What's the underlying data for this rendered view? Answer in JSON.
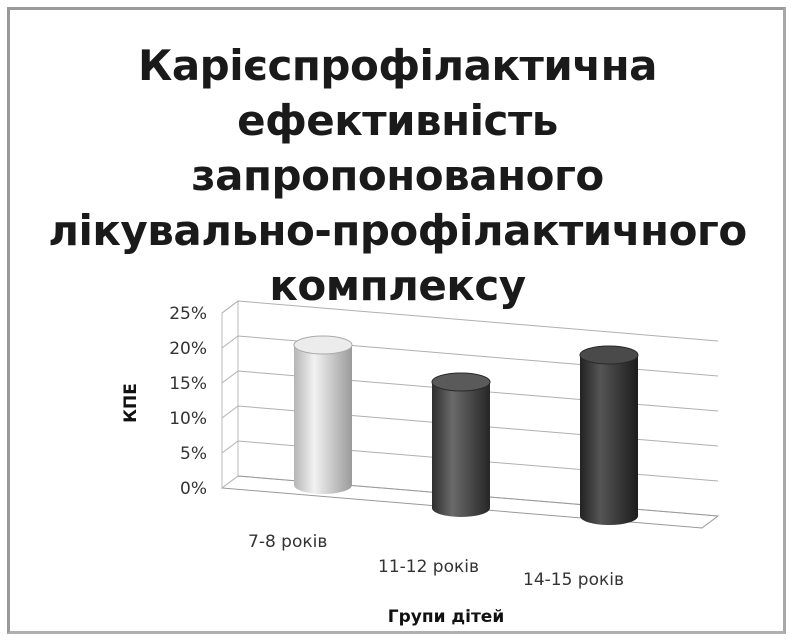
{
  "chart_data": {
    "type": "bar",
    "style": "3d-cylinder",
    "title_lines": [
      "Карієспрофілактична",
      "ефективність запропонованого",
      "лікувально-профілактичного",
      "комплексу"
    ],
    "xlabel": "Групи дітей",
    "ylabel": "КПЕ",
    "categories": [
      "7-8 років",
      "11-12 років",
      "14-15 років"
    ],
    "values": [
      20,
      18,
      23
    ],
    "ylim": [
      0,
      25
    ],
    "yticks": [
      "0%",
      "5%",
      "10%",
      "15%",
      "20%",
      "25%"
    ],
    "grid": true,
    "legend": "none",
    "colors": [
      "#d9d9d9",
      "#555555",
      "#3a3a3a"
    ]
  }
}
